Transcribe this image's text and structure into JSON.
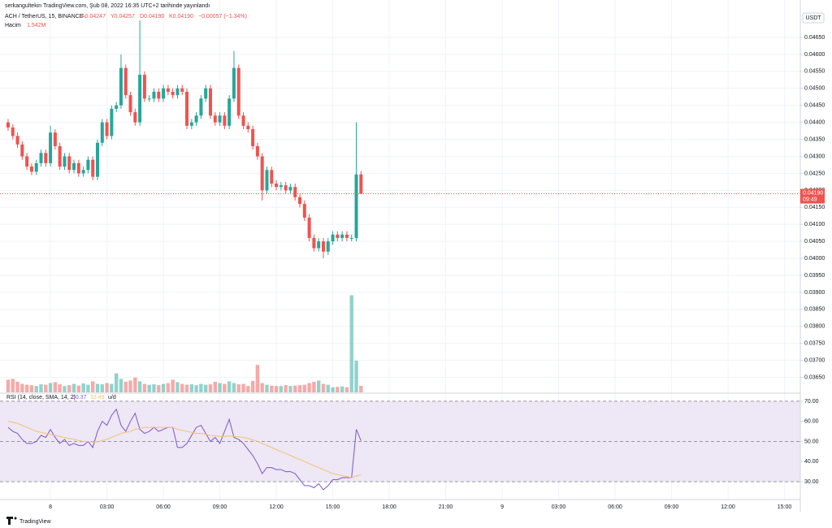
{
  "header": {
    "publisher": "serkangultekin TradingView.com, Şub 08, 2022 16:35 UTC+2 tarihinde yayınlandı",
    "footer": "TradingView"
  },
  "chart_data": [
    {
      "type": "candlestick",
      "symbol": "ACH / TetherUS, 15, BINANCE",
      "legend": [
        "A0.04247",
        "Y0.04257",
        "D0.04190",
        "K0.04190",
        "−0.00057 (−1.34%)"
      ],
      "volume_title": "Hacim",
      "volume_label": "1.542M",
      "currency": "USDT",
      "price_tag": {
        "label": "0.04190",
        "countdown": "09:49"
      },
      "up_color": "#26a69a",
      "down_color": "#ef5350",
      "x": [
        -2.25,
        -2,
        -1.75,
        -1.5,
        -1.25,
        -1,
        -0.75,
        -0.5,
        -0.25,
        0,
        0.25,
        0.5,
        0.75,
        1,
        1.25,
        1.5,
        1.75,
        2,
        2.25,
        2.5,
        2.75,
        3,
        3.25,
        3.5,
        3.75,
        4,
        4.25,
        4.5,
        4.75,
        5,
        5.25,
        5.5,
        5.75,
        6,
        6.25,
        6.5,
        6.75,
        7,
        7.25,
        7.5,
        7.75,
        8,
        8.25,
        8.5,
        8.75,
        9,
        9.25,
        9.5,
        9.75,
        10,
        10.25,
        10.5,
        10.75,
        11,
        11.25,
        11.5,
        11.75,
        12,
        12.25,
        12.5,
        12.75,
        13,
        13.25,
        13.5,
        13.75,
        14,
        14.25,
        14.5,
        14.75,
        15,
        15.25,
        15.5,
        15.75,
        16,
        16.25,
        16.5
      ],
      "open": [
        0.044,
        0.04385,
        0.0436,
        0.04335,
        0.043,
        0.0427,
        0.04255,
        0.0428,
        0.0431,
        0.0428,
        0.0437,
        0.0433,
        0.0427,
        0.043,
        0.0426,
        0.0428,
        0.0425,
        0.0426,
        0.0429,
        0.0424,
        0.0434,
        0.044,
        0.0436,
        0.0444,
        0.0445,
        0.0456,
        0.0448,
        0.0443,
        0.044,
        0.0454,
        0.0447,
        0.0447,
        0.0449,
        0.0447,
        0.045,
        0.0449,
        0.0448,
        0.045,
        0.0449,
        0.0439,
        0.044,
        0.0442,
        0.0447,
        0.045,
        0.0442,
        0.044,
        0.0442,
        0.0439,
        0.0447,
        0.0456,
        0.0442,
        0.0439,
        0.0438,
        0.0433,
        0.043,
        0.042,
        0.0426,
        0.0422,
        0.0421,
        0.04215,
        0.042,
        0.0421,
        0.0418,
        0.0416,
        0.0412,
        0.0406,
        0.0403,
        0.0405,
        0.0402,
        0.0405,
        0.0407,
        0.0406,
        0.0407,
        0.0406,
        0.0406,
        0.04247
      ],
      "high": [
        0.0441,
        0.04395,
        0.0437,
        0.04345,
        0.0431,
        0.0428,
        0.0429,
        0.0432,
        0.0432,
        0.0439,
        0.0438,
        0.0434,
        0.0431,
        0.0431,
        0.0429,
        0.0429,
        0.0427,
        0.043,
        0.043,
        0.0435,
        0.0441,
        0.0441,
        0.0445,
        0.0446,
        0.046,
        0.0457,
        0.0449,
        0.0444,
        0.047,
        0.0455,
        0.0448,
        0.045,
        0.045,
        0.0451,
        0.0451,
        0.045,
        0.0451,
        0.0451,
        0.045,
        0.0441,
        0.0443,
        0.0448,
        0.0451,
        0.0451,
        0.0443,
        0.0443,
        0.0443,
        0.0448,
        0.0461,
        0.0457,
        0.0443,
        0.044,
        0.0439,
        0.0434,
        0.0431,
        0.0427,
        0.0427,
        0.0423,
        0.04225,
        0.04225,
        0.0422,
        0.0422,
        0.0419,
        0.0417,
        0.0413,
        0.0407,
        0.0406,
        0.0406,
        0.0406,
        0.0408,
        0.0408,
        0.0408,
        0.0408,
        0.0407,
        0.044,
        0.04257
      ],
      "low": [
        0.04375,
        0.0435,
        0.04325,
        0.0429,
        0.0426,
        0.04245,
        0.04245,
        0.0427,
        0.0427,
        0.0427,
        0.0432,
        0.0426,
        0.0426,
        0.0425,
        0.0425,
        0.0424,
        0.0424,
        0.0425,
        0.0423,
        0.0423,
        0.0433,
        0.0435,
        0.0435,
        0.0443,
        0.0444,
        0.0447,
        0.0442,
        0.0439,
        0.0439,
        0.0446,
        0.0446,
        0.0446,
        0.0446,
        0.0446,
        0.0448,
        0.0447,
        0.0447,
        0.0448,
        0.0438,
        0.0438,
        0.0439,
        0.0441,
        0.0446,
        0.0441,
        0.0439,
        0.0439,
        0.0438,
        0.0438,
        0.0446,
        0.0441,
        0.0438,
        0.0437,
        0.0432,
        0.0429,
        0.0417,
        0.0419,
        0.0421,
        0.042,
        0.042,
        0.0419,
        0.0419,
        0.0417,
        0.0415,
        0.0411,
        0.0405,
        0.0402,
        0.0402,
        0.04,
        0.0401,
        0.0404,
        0.0405,
        0.0405,
        0.0405,
        0.0405,
        0.0405,
        0.0419
      ],
      "close": [
        0.04385,
        0.0436,
        0.04335,
        0.043,
        0.0427,
        0.04255,
        0.0428,
        0.0431,
        0.0428,
        0.0437,
        0.0433,
        0.0427,
        0.043,
        0.0426,
        0.0428,
        0.0425,
        0.0426,
        0.0429,
        0.0424,
        0.0434,
        0.044,
        0.0436,
        0.0444,
        0.0445,
        0.0456,
        0.0448,
        0.0443,
        0.044,
        0.0454,
        0.0447,
        0.0447,
        0.0449,
        0.0447,
        0.045,
        0.0449,
        0.0448,
        0.045,
        0.0449,
        0.0439,
        0.044,
        0.0442,
        0.0447,
        0.045,
        0.0442,
        0.044,
        0.0442,
        0.0439,
        0.0447,
        0.0456,
        0.0442,
        0.0439,
        0.0438,
        0.0433,
        0.043,
        0.042,
        0.0426,
        0.0422,
        0.0421,
        0.04215,
        0.042,
        0.0421,
        0.0418,
        0.0416,
        0.0412,
        0.0406,
        0.0403,
        0.0405,
        0.0402,
        0.0405,
        0.0407,
        0.0406,
        0.0407,
        0.0406,
        0.0406,
        0.04247,
        0.0419
      ],
      "volume": [
        3.0,
        3.2,
        2.5,
        2.0,
        1.8,
        1.7,
        1.5,
        1.9,
        1.8,
        2.2,
        2.4,
        1.9,
        1.5,
        1.7,
        2.0,
        1.6,
        2.1,
        1.8,
        2.6,
        2.0,
        1.9,
        2.2,
        2.0,
        4.5,
        3.2,
        2.5,
        2.8,
        3.5,
        2.6,
        2.0,
        1.8,
        1.9,
        1.7,
        2.0,
        2.2,
        3.0,
        2.4,
        2.0,
        1.8,
        1.9,
        1.7,
        2.0,
        1.8,
        1.9,
        2.5,
        2.2,
        2.0,
        2.6,
        2.2,
        1.9,
        2.0,
        1.5,
        2.7,
        6.5,
        2.2,
        1.8,
        1.6,
        1.5,
        1.5,
        1.7,
        1.5,
        1.6,
        1.7,
        1.8,
        2.2,
        2.5,
        2.8,
        2.0,
        1.8,
        1.2,
        1.3,
        1.4,
        1.2,
        23.0,
        7.5,
        1.542
      ],
      "volume_lim": [
        0,
        91
      ],
      "xlim": [
        -2.68,
        39.84
      ],
      "xticks": [
        {
          "value": 0,
          "label": "8"
        },
        {
          "value": 3,
          "label": "03:00"
        },
        {
          "value": 6,
          "label": "06:00"
        },
        {
          "value": 9,
          "label": "09:00"
        },
        {
          "value": 12,
          "label": "12:00"
        },
        {
          "value": 15,
          "label": "15:00"
        },
        {
          "value": 18,
          "label": "18:00"
        },
        {
          "value": 21,
          "label": "21:00"
        },
        {
          "value": 24,
          "label": "9"
        },
        {
          "value": 27,
          "label": "03:00"
        },
        {
          "value": 30,
          "label": "06:00"
        },
        {
          "value": 33,
          "label": "09:00"
        },
        {
          "value": 36,
          "label": "12:00"
        },
        {
          "value": 39,
          "label": "15:00"
        }
      ],
      "ylim": [
        0.03606,
        0.04736
      ],
      "yticks": [
        {
          "value": 0.0365,
          "label": "0.03650"
        },
        {
          "value": 0.037,
          "label": "0.03700"
        },
        {
          "value": 0.0375,
          "label": "0.03750"
        },
        {
          "value": 0.038,
          "label": "0.03800"
        },
        {
          "value": 0.0385,
          "label": "0.03850"
        },
        {
          "value": 0.039,
          "label": "0.03900"
        },
        {
          "value": 0.0395,
          "label": "0.03950"
        },
        {
          "value": 0.04,
          "label": "0.04000"
        },
        {
          "value": 0.0405,
          "label": "0.04050"
        },
        {
          "value": 0.041,
          "label": "0.04100"
        },
        {
          "value": 0.0415,
          "label": "0.04150"
        },
        {
          "value": 0.042,
          "label": "0.04200"
        },
        {
          "value": 0.0425,
          "label": "0.04250"
        },
        {
          "value": 0.043,
          "label": "0.04300"
        },
        {
          "value": 0.0435,
          "label": "0.04350"
        },
        {
          "value": 0.044,
          "label": "0.04400"
        },
        {
          "value": 0.0445,
          "label": "0.04450"
        },
        {
          "value": 0.045,
          "label": "0.04500"
        },
        {
          "value": 0.0455,
          "label": "0.04550"
        },
        {
          "value": 0.046,
          "label": "0.04600"
        },
        {
          "value": 0.0465,
          "label": "0.04650"
        }
      ],
      "grid": true
    },
    {
      "type": "line",
      "title": "RSI (14, close, SMA, 14, 2)",
      "legend": [
        "50.37",
        "33.49",
        "u/d"
      ],
      "series": [
        {
          "name": "RSI",
          "color": "#7e57c2",
          "values": [
            57,
            55,
            54,
            51,
            49,
            49,
            50,
            53,
            52,
            56,
            52,
            49,
            51,
            48,
            49,
            48,
            48,
            50,
            47,
            55,
            60,
            58,
            63,
            66,
            58,
            55,
            60,
            64,
            56,
            54,
            55,
            57,
            55,
            56,
            57,
            57,
            47,
            47,
            49,
            53,
            57,
            58,
            54,
            50,
            52,
            49,
            55,
            61,
            52,
            51,
            49,
            46,
            43,
            39,
            34,
            37,
            37,
            36,
            36,
            35,
            35,
            34,
            31,
            28,
            28,
            27,
            29,
            26,
            28,
            31,
            31,
            32,
            32,
            32,
            56,
            50.37
          ]
        },
        {
          "name": "MA",
          "color": "#f5c26b",
          "values": [
            60,
            59.5,
            59,
            58,
            57,
            56,
            55,
            54.5,
            54,
            53.5,
            53,
            52.5,
            52,
            51.5,
            51,
            50.5,
            50,
            50,
            49.7,
            49.8,
            50.5,
            51,
            52,
            53,
            54,
            54.5,
            55,
            56,
            56.5,
            57,
            57,
            57,
            57,
            57,
            57,
            57,
            56,
            55.5,
            55,
            54.5,
            54,
            54,
            53.5,
            53,
            52.8,
            52.5,
            52.5,
            52.7,
            52.5,
            52.3,
            52,
            51.5,
            50.8,
            50,
            49,
            48,
            47,
            46,
            45,
            44,
            43,
            42,
            41,
            40,
            39,
            38,
            37,
            36,
            35,
            34,
            33.5,
            33,
            32.5,
            32,
            32.8,
            33.49
          ]
        }
      ],
      "band": [
        30,
        70
      ],
      "midline": 50,
      "band_color": "#ede7f6",
      "ylim": [
        21.1,
        73.6
      ],
      "yticks": [
        {
          "value": 30,
          "label": "30.00"
        },
        {
          "value": 40,
          "label": "40.00"
        },
        {
          "value": 50,
          "label": "50.00"
        },
        {
          "value": 60,
          "label": "60.00"
        },
        {
          "value": 70,
          "label": "70.00"
        }
      ]
    }
  ]
}
